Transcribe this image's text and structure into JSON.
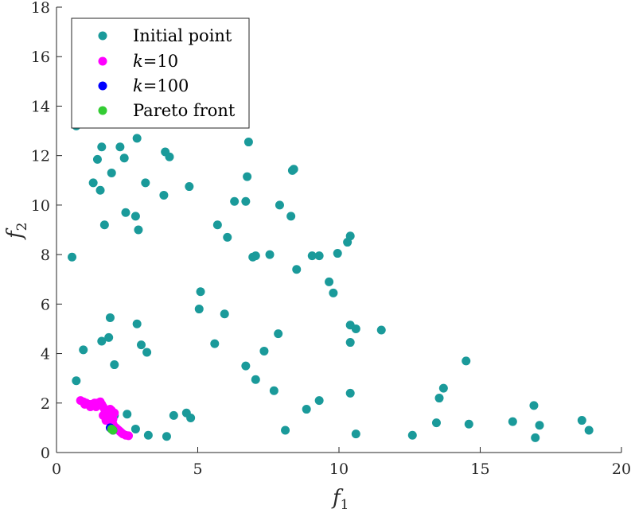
{
  "chart_data": {
    "type": "scatter",
    "xlabel": "f",
    "xlabel_sub": "1",
    "ylabel": "f",
    "ylabel_sub": "2",
    "xlim": [
      0,
      20
    ],
    "ylim": [
      0,
      18
    ],
    "xticks": [
      0,
      5,
      10,
      15,
      20
    ],
    "yticks": [
      0,
      2,
      4,
      6,
      8,
      10,
      12,
      14,
      16,
      18
    ],
    "grid": false,
    "legend_position": "top-left",
    "series": [
      {
        "name": "Initial point",
        "color": "#1a9a9a",
        "points": [
          [
            0.7,
            13.2
          ],
          [
            1.6,
            12.35
          ],
          [
            2.25,
            12.35
          ],
          [
            1.45,
            11.85
          ],
          [
            2.4,
            11.9
          ],
          [
            2.85,
            12.7
          ],
          [
            3.85,
            12.15
          ],
          [
            4.0,
            11.95
          ],
          [
            1.3,
            10.9
          ],
          [
            1.55,
            10.6
          ],
          [
            1.95,
            11.3
          ],
          [
            3.15,
            10.9
          ],
          [
            3.8,
            10.4
          ],
          [
            4.7,
            10.75
          ],
          [
            1.7,
            9.2
          ],
          [
            2.45,
            9.7
          ],
          [
            2.8,
            9.55
          ],
          [
            2.9,
            9.0
          ],
          [
            0.55,
            7.9
          ],
          [
            6.8,
            12.55
          ],
          [
            6.75,
            11.15
          ],
          [
            8.35,
            11.4
          ],
          [
            8.4,
            11.45
          ],
          [
            6.3,
            10.15
          ],
          [
            6.7,
            10.15
          ],
          [
            7.9,
            10.0
          ],
          [
            8.3,
            9.55
          ],
          [
            5.7,
            9.2
          ],
          [
            6.05,
            8.7
          ],
          [
            6.95,
            7.9
          ],
          [
            7.05,
            7.95
          ],
          [
            7.55,
            8.0
          ],
          [
            8.5,
            7.4
          ],
          [
            9.05,
            7.95
          ],
          [
            9.3,
            7.95
          ],
          [
            9.95,
            8.05
          ],
          [
            10.3,
            8.5
          ],
          [
            10.4,
            8.75
          ],
          [
            9.65,
            6.9
          ],
          [
            9.8,
            6.45
          ],
          [
            5.1,
            6.5
          ],
          [
            5.05,
            5.8
          ],
          [
            5.95,
            5.6
          ],
          [
            1.9,
            5.45
          ],
          [
            2.85,
            5.2
          ],
          [
            1.85,
            4.65
          ],
          [
            1.6,
            4.5
          ],
          [
            3.0,
            4.35
          ],
          [
            3.2,
            4.05
          ],
          [
            0.95,
            4.15
          ],
          [
            5.6,
            4.4
          ],
          [
            7.35,
            4.1
          ],
          [
            7.85,
            4.8
          ],
          [
            10.4,
            5.15
          ],
          [
            10.6,
            5.0
          ],
          [
            11.5,
            4.95
          ],
          [
            10.4,
            4.45
          ],
          [
            2.05,
            3.55
          ],
          [
            6.7,
            3.5
          ],
          [
            7.05,
            2.95
          ],
          [
            0.7,
            2.9
          ],
          [
            7.7,
            2.5
          ],
          [
            9.3,
            2.1
          ],
          [
            10.4,
            2.4
          ],
          [
            8.85,
            1.75
          ],
          [
            14.5,
            3.7
          ],
          [
            13.7,
            2.6
          ],
          [
            13.55,
            2.2
          ],
          [
            16.9,
            1.9
          ],
          [
            2.05,
            1.5
          ],
          [
            2.5,
            1.55
          ],
          [
            4.15,
            1.5
          ],
          [
            4.6,
            1.6
          ],
          [
            4.75,
            1.4
          ],
          [
            2.8,
            0.95
          ],
          [
            3.25,
            0.7
          ],
          [
            3.9,
            0.65
          ],
          [
            8.1,
            0.9
          ],
          [
            10.6,
            0.75
          ],
          [
            12.6,
            0.7
          ],
          [
            13.45,
            1.2
          ],
          [
            14.6,
            1.15
          ],
          [
            16.15,
            1.25
          ],
          [
            17.1,
            1.1
          ],
          [
            18.6,
            1.3
          ],
          [
            18.85,
            0.9
          ],
          [
            16.95,
            0.6
          ]
        ]
      },
      {
        "name": "k=10",
        "color": "#ff00ff",
        "points": [
          [
            0.85,
            2.1
          ],
          [
            0.95,
            2.05
          ],
          [
            1.05,
            2.0
          ],
          [
            1.15,
            1.95
          ],
          [
            1.25,
            1.95
          ],
          [
            1.35,
            2.0
          ],
          [
            1.45,
            2.0
          ],
          [
            1.55,
            2.05
          ],
          [
            1.6,
            1.95
          ],
          [
            1.65,
            1.85
          ],
          [
            1.7,
            1.75
          ],
          [
            1.75,
            1.65
          ],
          [
            1.8,
            1.55
          ],
          [
            1.85,
            1.45
          ],
          [
            1.9,
            1.35
          ],
          [
            1.95,
            1.25
          ],
          [
            2.0,
            1.15
          ],
          [
            2.05,
            1.05
          ],
          [
            2.1,
            1.0
          ],
          [
            2.15,
            0.95
          ],
          [
            2.2,
            0.9
          ],
          [
            2.25,
            0.85
          ],
          [
            2.3,
            0.8
          ],
          [
            2.35,
            0.75
          ],
          [
            2.45,
            0.7
          ],
          [
            2.55,
            0.68
          ],
          [
            1.0,
            1.95
          ],
          [
            1.2,
            1.85
          ],
          [
            1.4,
            1.85
          ],
          [
            1.65,
            1.5
          ],
          [
            1.75,
            1.3
          ],
          [
            1.95,
            1.7
          ],
          [
            2.05,
            1.6
          ],
          [
            1.9,
            1.75
          ],
          [
            2.0,
            1.35
          ]
        ]
      },
      {
        "name": "k=100",
        "color": "#0000ff",
        "points": [
          [
            1.9,
            1.0
          ],
          [
            1.95,
            0.95
          ],
          [
            2.0,
            0.9
          ]
        ]
      },
      {
        "name": "Pareto front",
        "color": "#33cc33",
        "points": [
          [
            1.95,
            0.95
          ],
          [
            2.0,
            0.9
          ]
        ]
      }
    ],
    "legend": {
      "items": [
        {
          "label": "Initial point",
          "italic_prefix": "",
          "rest": ""
        },
        {
          "label": "",
          "italic_prefix": "k",
          "rest": "=10"
        },
        {
          "label": "",
          "italic_prefix": "k",
          "rest": "=100"
        },
        {
          "label": "Pareto front",
          "italic_prefix": "",
          "rest": ""
        }
      ]
    }
  }
}
